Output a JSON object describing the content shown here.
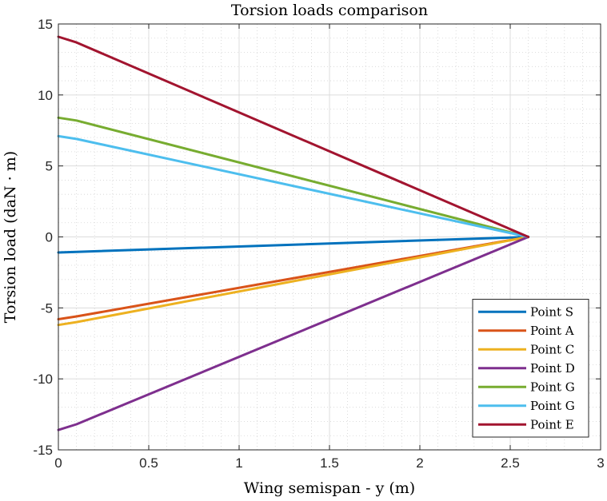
{
  "chart_data": {
    "type": "line",
    "title": "Torsion loads comparison",
    "xlabel": "Wing semispan - y (m)",
    "ylabel": "Torsion load (daN · m)",
    "xlim": [
      0,
      3
    ],
    "ylim": [
      -15,
      15
    ],
    "x_ticks": [
      0,
      0.5,
      1,
      1.5,
      2,
      2.5,
      3
    ],
    "x_tick_labels": [
      "0",
      "0.5",
      "1",
      "1.5",
      "2",
      "2.5",
      "3"
    ],
    "y_ticks": [
      -15,
      -10,
      -5,
      0,
      5,
      10,
      15
    ],
    "y_tick_labels": [
      "-15",
      "-10",
      "-5",
      "0",
      "5",
      "10",
      "15"
    ],
    "grid": true,
    "minor_grid": true,
    "legend_position": "bottom-right",
    "series": [
      {
        "name": "Point S",
        "color": "#0072BD",
        "x": [
          0,
          0.1,
          2.6
        ],
        "y": [
          -1.1,
          -1.05,
          0
        ]
      },
      {
        "name": "Point A",
        "color": "#D95319",
        "x": [
          0,
          0.1,
          2.6
        ],
        "y": [
          -5.8,
          -5.6,
          0
        ]
      },
      {
        "name": "Point C",
        "color": "#EDB120",
        "x": [
          0,
          0.1,
          2.6
        ],
        "y": [
          -6.2,
          -6.0,
          0
        ]
      },
      {
        "name": "Point D",
        "color": "#7E2F8E",
        "x": [
          0,
          0.1,
          2.6
        ],
        "y": [
          -13.6,
          -13.2,
          0
        ]
      },
      {
        "name": "Point G",
        "color": "#77AC30",
        "x": [
          0,
          0.1,
          2.6
        ],
        "y": [
          8.4,
          8.2,
          0
        ]
      },
      {
        "name": "Point G",
        "color": "#4DBEEE",
        "x": [
          0,
          0.1,
          2.6
        ],
        "y": [
          7.1,
          6.9,
          0
        ]
      },
      {
        "name": "Point E",
        "color": "#A2142F",
        "x": [
          0,
          0.1,
          2.6
        ],
        "y": [
          14.1,
          13.7,
          0
        ]
      }
    ]
  }
}
